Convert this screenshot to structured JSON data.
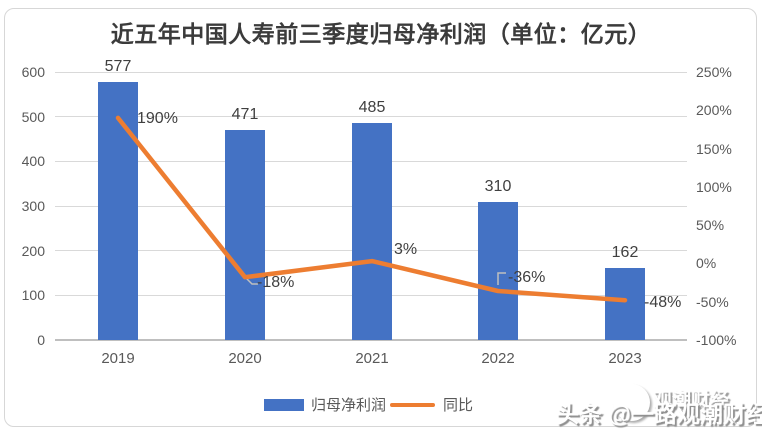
{
  "title": "近五年中国人寿前三季度归母净利润（单位：亿元）",
  "chart_data": {
    "type": "bar+line",
    "title": "近五年中国人寿前三季度归母净利润（单位：亿元）",
    "categories": [
      "2019",
      "2020",
      "2021",
      "2022",
      "2023"
    ],
    "series": [
      {
        "name": "归母净利润",
        "type": "bar",
        "axis": "left",
        "values": [
          577,
          471,
          485,
          310,
          162
        ],
        "data_labels": [
          "577",
          "471",
          "485",
          "310",
          "162"
        ],
        "color": "#4472C4"
      },
      {
        "name": "同比",
        "type": "line",
        "axis": "right",
        "values_pct": [
          190,
          -18,
          3,
          -36,
          -48
        ],
        "data_labels": [
          "190%",
          "-18%",
          "3%",
          "-36%",
          "-48%"
        ],
        "color": "#ED7D31"
      }
    ],
    "left_axis": {
      "min": 0,
      "max": 600,
      "step": 100,
      "ticks": [
        "600",
        "500",
        "400",
        "300",
        "200",
        "100",
        "0"
      ]
    },
    "right_axis": {
      "min": -100,
      "max": 250,
      "step": 50,
      "ticks": [
        "250%",
        "200%",
        "150%",
        "100%",
        "50%",
        "0%",
        "-50%",
        "-100%"
      ]
    },
    "grid": true,
    "legend": {
      "position": "bottom",
      "items": [
        {
          "label": "归母净利润",
          "marker": "rect",
          "color": "#4472C4"
        },
        {
          "label": "同比",
          "marker": "line",
          "color": "#ED7D31"
        }
      ]
    }
  },
  "colors": {
    "bar": "#4472C4",
    "line": "#ED7D31",
    "grid": "#D9D9D9",
    "axis_line": "#BFBFBF",
    "axis_text": "#595959",
    "label_text": "#404040",
    "title_text": "#3B3B3B",
    "frame_border": "#D7D7D7"
  },
  "watermark": {
    "main": "头条 @一路观潮财经",
    "badge": "观潮财经"
  }
}
